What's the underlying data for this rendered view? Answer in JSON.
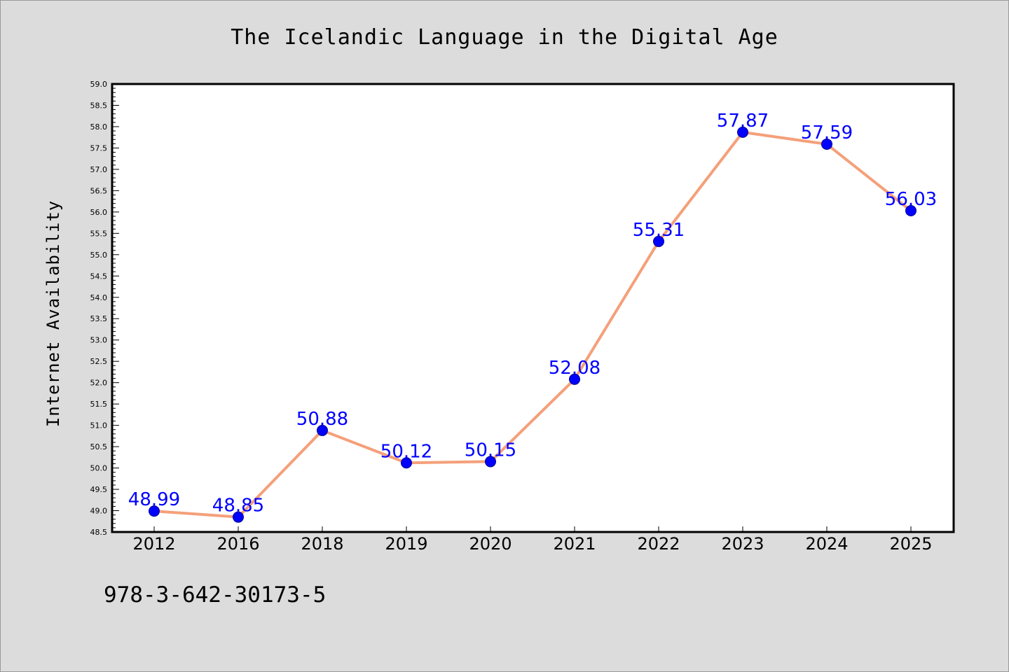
{
  "chart_data": {
    "type": "line",
    "title": "The Icelandic Language in the Digital Age",
    "xlabel": "",
    "ylabel": "Internet Availability",
    "categories": [
      "2012",
      "2016",
      "2018",
      "2019",
      "2020",
      "2021",
      "2022",
      "2023",
      "2024",
      "2025"
    ],
    "series": [
      {
        "values": [
          48.99,
          48.85,
          50.88,
          50.12,
          50.15,
          52.08,
          55.31,
          57.87,
          57.59,
          56.03
        ],
        "labels": [
          "48.99",
          "48.85",
          "50.88",
          "50.12",
          "50.15",
          "52.08",
          "55.31",
          "57.87",
          "57.59",
          "56.03"
        ],
        "line_color": "#f4a07a",
        "marker_color": "#0000ff"
      }
    ],
    "ylim": [
      48.5,
      59.0
    ],
    "y_ticks": [
      "48.5",
      "49.0",
      "49.5",
      "50.0",
      "50.5",
      "51.0",
      "51.5",
      "52.0",
      "52.5",
      "53.0",
      "53.5",
      "54.0",
      "54.5",
      "55.0",
      "55.5",
      "56.0",
      "56.5",
      "57.0",
      "57.5",
      "58.0",
      "58.5",
      "59.0"
    ],
    "grid": false,
    "legend": "none"
  },
  "footnote": "978-3-642-30173-5",
  "colors": {
    "background": "#dcdcdc",
    "plot_area": "#ffffff",
    "line": "#f4a07a",
    "marker": "#0000ff",
    "data_label": "#0000ff"
  }
}
